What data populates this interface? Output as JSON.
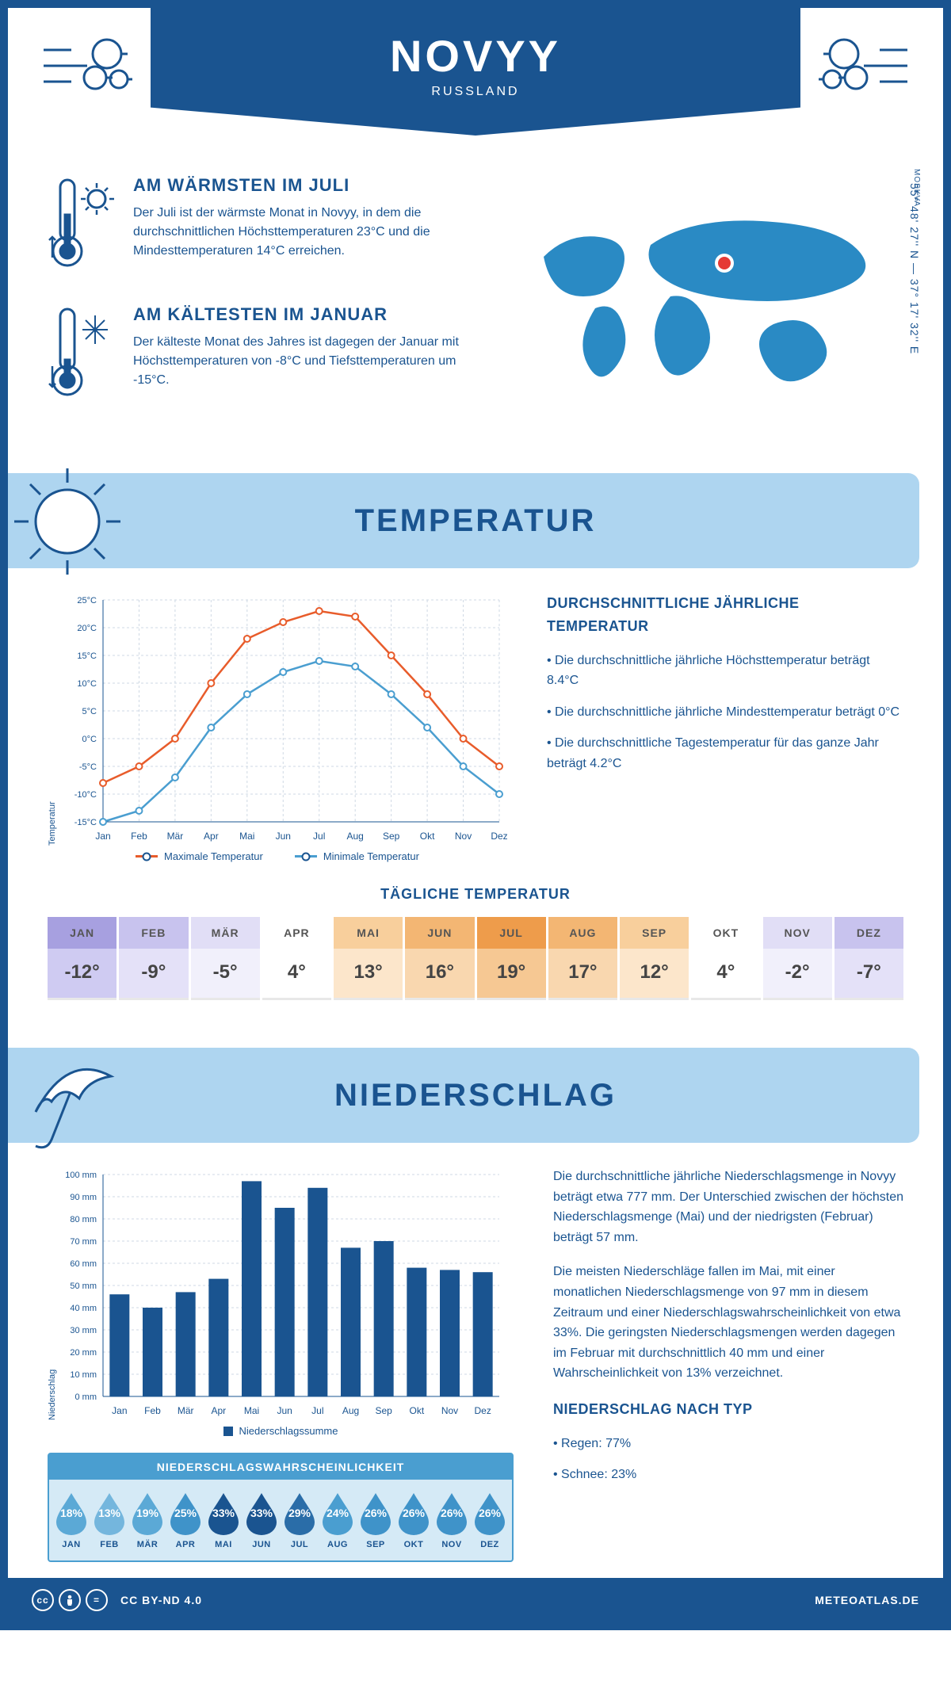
{
  "header": {
    "city": "NOVYY",
    "country": "RUSSLAND",
    "coords": "55° 48' 27'' N — 37° 17' 32'' E",
    "region": "MOSKVA"
  },
  "facts": {
    "warmest": {
      "title": "AM WÄRMSTEN IM JULI",
      "text": "Der Juli ist der wärmste Monat in Novyy, in dem die durchschnittlichen Höchsttemperaturen 23°C und die Mindesttemperaturen 14°C erreichen."
    },
    "coldest": {
      "title": "AM KÄLTESTEN IM JANUAR",
      "text": "Der kälteste Monat des Jahres ist dagegen der Januar mit Höchsttemperaturen von -8°C und Tiefsttemperaturen um -15°C."
    }
  },
  "sections": {
    "temp_title": "TEMPERATUR",
    "precip_title": "NIEDERSCHLAG"
  },
  "temp_chart": {
    "months": [
      "Jan",
      "Feb",
      "Mär",
      "Apr",
      "Mai",
      "Jun",
      "Jul",
      "Aug",
      "Sep",
      "Okt",
      "Nov",
      "Dez"
    ],
    "max": [
      -8,
      -5,
      0,
      10,
      18,
      21,
      23,
      22,
      15,
      8,
      0,
      -5
    ],
    "min": [
      -15,
      -13,
      -7,
      2,
      8,
      12,
      14,
      13,
      8,
      2,
      -5,
      -10
    ],
    "yticks": [
      -15,
      -10,
      -5,
      0,
      5,
      10,
      15,
      20,
      25
    ],
    "ylabel": "Temperatur",
    "max_color": "#e85c2b",
    "min_color": "#4a9ed0",
    "grid_color": "#cfd9e4",
    "legend_max": "Maximale Temperatur",
    "legend_min": "Minimale Temperatur"
  },
  "temp_info": {
    "heading": "DURCHSCHNITTLICHE JÄHRLICHE TEMPERATUR",
    "items": [
      "• Die durchschnittliche jährliche Höchsttemperatur beträgt 8.4°C",
      "• Die durchschnittliche jährliche Mindesttemperatur beträgt 0°C",
      "• Die durchschnittliche Tagestemperatur für das ganze Jahr beträgt 4.2°C"
    ]
  },
  "daily_temp": {
    "title": "TÄGLICHE TEMPERATUR",
    "months": [
      "JAN",
      "FEB",
      "MÄR",
      "APR",
      "MAI",
      "JUN",
      "JUL",
      "AUG",
      "SEP",
      "OKT",
      "NOV",
      "DEZ"
    ],
    "values": [
      "-12°",
      "-9°",
      "-5°",
      "4°",
      "13°",
      "16°",
      "19°",
      "17°",
      "12°",
      "4°",
      "-2°",
      "-7°"
    ],
    "header_colors": [
      "#a7a0e0",
      "#c8c3ee",
      "#e1def6",
      "#ffffff",
      "#f8cf9c",
      "#f3b673",
      "#ee9c4b",
      "#f3b673",
      "#f8cf9c",
      "#ffffff",
      "#e1def6",
      "#c8c3ee"
    ],
    "value_colors": [
      "#cfcbf2",
      "#e4e1f8",
      "#f1f0fb",
      "#ffffff",
      "#fce6cb",
      "#f9d7af",
      "#f6c893",
      "#f9d7af",
      "#fce6cb",
      "#ffffff",
      "#f1f0fb",
      "#e4e1f8"
    ]
  },
  "precip_chart": {
    "months": [
      "Jan",
      "Feb",
      "Mär",
      "Apr",
      "Mai",
      "Jun",
      "Jul",
      "Aug",
      "Sep",
      "Okt",
      "Nov",
      "Dez"
    ],
    "values": [
      46,
      40,
      47,
      53,
      97,
      85,
      94,
      67,
      70,
      58,
      57,
      56
    ],
    "yticks": [
      0,
      10,
      20,
      30,
      40,
      50,
      60,
      70,
      80,
      90,
      100
    ],
    "ylabel": "Niederschlag",
    "bar_color": "#1a5490",
    "grid_color": "#cfd9e4",
    "legend": "Niederschlagssumme"
  },
  "precip_info": {
    "p1": "Die durchschnittliche jährliche Niederschlagsmenge in Novyy beträgt etwa 777 mm. Der Unterschied zwischen der höchsten Niederschlagsmenge (Mai) und der niedrigsten (Februar) beträgt 57 mm.",
    "p2": "Die meisten Niederschläge fallen im Mai, mit einer monatlichen Niederschlagsmenge von 97 mm in diesem Zeitraum und einer Niederschlagswahrscheinlichkeit von etwa 33%. Die geringsten Niederschlagsmengen werden dagegen im Februar mit durchschnittlich 40 mm und einer Wahrscheinlichkeit von 13% verzeichnet.",
    "type_heading": "NIEDERSCHLAG NACH TYP",
    "type_items": [
      "• Regen: 77%",
      "• Schnee: 23%"
    ]
  },
  "precip_prob": {
    "title": "NIEDERSCHLAGSWAHRSCHEINLICHKEIT",
    "months": [
      "JAN",
      "FEB",
      "MÄR",
      "APR",
      "MAI",
      "JUN",
      "JUL",
      "AUG",
      "SEP",
      "OKT",
      "NOV",
      "DEZ"
    ],
    "values": [
      "18%",
      "13%",
      "19%",
      "25%",
      "33%",
      "33%",
      "29%",
      "24%",
      "26%",
      "26%",
      "26%",
      "26%"
    ],
    "colors": [
      "#5ba9d6",
      "#74b6dd",
      "#5ba9d6",
      "#3f93c9",
      "#1a5490",
      "#1a5490",
      "#2a6da8",
      "#4a9ed0",
      "#3f93c9",
      "#3f93c9",
      "#3f93c9",
      "#3f93c9"
    ]
  },
  "footer": {
    "license": "CC BY-ND 4.0",
    "brand": "METEOATLAS.DE"
  }
}
